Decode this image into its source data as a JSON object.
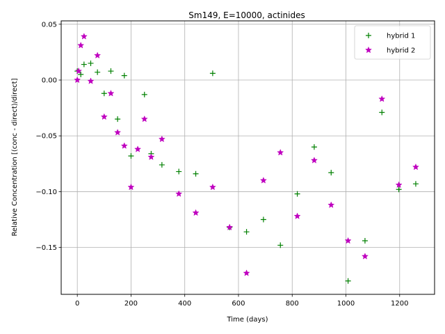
{
  "chart_data": {
    "type": "scatter",
    "title": "Sm149, E=10000, actinides",
    "xlabel": "Time (days)",
    "ylabel": "Relative Concentration [(conc - direct)/direct]",
    "xlim": [
      -60,
      1330
    ],
    "ylim": [
      -0.192,
      0.053
    ],
    "xticks": [
      0,
      200,
      400,
      600,
      800,
      1000,
      1200
    ],
    "yticks": [
      0.05,
      0.0,
      -0.05,
      -0.1,
      -0.15
    ],
    "xtick_labels": [
      "0",
      "200",
      "400",
      "600",
      "800",
      "1000",
      "1200"
    ],
    "ytick_labels": [
      "0.05",
      "0.00",
      "−0.05",
      "−0.10",
      "−0.15"
    ],
    "grid": true,
    "legend_position": "upper right",
    "series": [
      {
        "name": "hybrid 1",
        "marker": "plus",
        "color": "#008000",
        "x": [
          0,
          13,
          25,
          50,
          75,
          100,
          125,
          150,
          175,
          200,
          250,
          275,
          315,
          378,
          441,
          504,
          567,
          630,
          693,
          756,
          819,
          882,
          945,
          1008,
          1071,
          1134,
          1197,
          1260
        ],
        "y": [
          0.008,
          0.005,
          0.014,
          0.015,
          0.007,
          -0.012,
          0.008,
          -0.035,
          0.004,
          -0.068,
          -0.013,
          -0.066,
          -0.076,
          -0.082,
          -0.084,
          0.006,
          -0.132,
          -0.136,
          -0.125,
          -0.148,
          -0.102,
          -0.06,
          -0.083,
          -0.18,
          -0.144,
          -0.029,
          -0.098,
          -0.093
        ]
      },
      {
        "name": "hybrid 2",
        "marker": "star",
        "color": "#bf00bf",
        "x": [
          0,
          5,
          13,
          25,
          50,
          75,
          100,
          125,
          150,
          175,
          200,
          225,
          250,
          275,
          315,
          378,
          441,
          504,
          567,
          630,
          693,
          756,
          819,
          882,
          945,
          1008,
          1071,
          1134,
          1197,
          1260
        ],
        "y": [
          0.0,
          0.008,
          0.031,
          0.039,
          -0.001,
          0.022,
          -0.033,
          -0.012,
          -0.047,
          -0.059,
          -0.096,
          -0.062,
          -0.035,
          -0.069,
          -0.053,
          -0.102,
          -0.119,
          -0.096,
          -0.132,
          -0.173,
          -0.09,
          -0.065,
          -0.122,
          -0.072,
          -0.112,
          -0.144,
          -0.158,
          -0.017,
          -0.094,
          -0.078
        ]
      }
    ]
  }
}
